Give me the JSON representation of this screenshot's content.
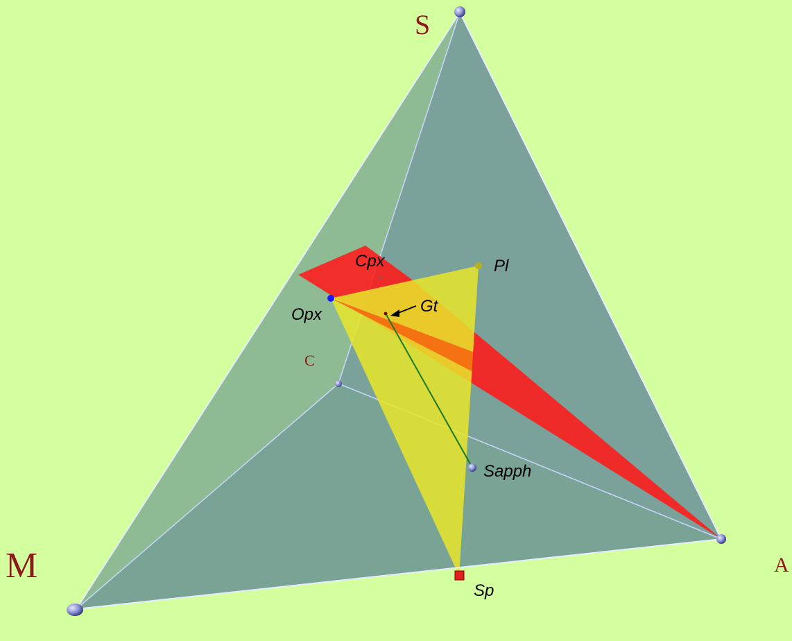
{
  "vertices": {
    "S": "S",
    "C": "C",
    "M": "M",
    "A": "A"
  },
  "phases": {
    "cpx": "Cpx",
    "pl": "Pl",
    "opx": "Opx",
    "gt": "Gt",
    "sapph": "Sapph",
    "sp": "Sp"
  },
  "colors": {
    "background": "#d3ff9f",
    "face_back": "#7fa6a6",
    "face_front": "#6f9d93",
    "edge": "#c9d6ff",
    "red_plane": "#ff1a1a",
    "yellow_plane": "#e8e62a",
    "vertex_label": "#8b1a1a",
    "tie_line": "#1a7a1a"
  }
}
